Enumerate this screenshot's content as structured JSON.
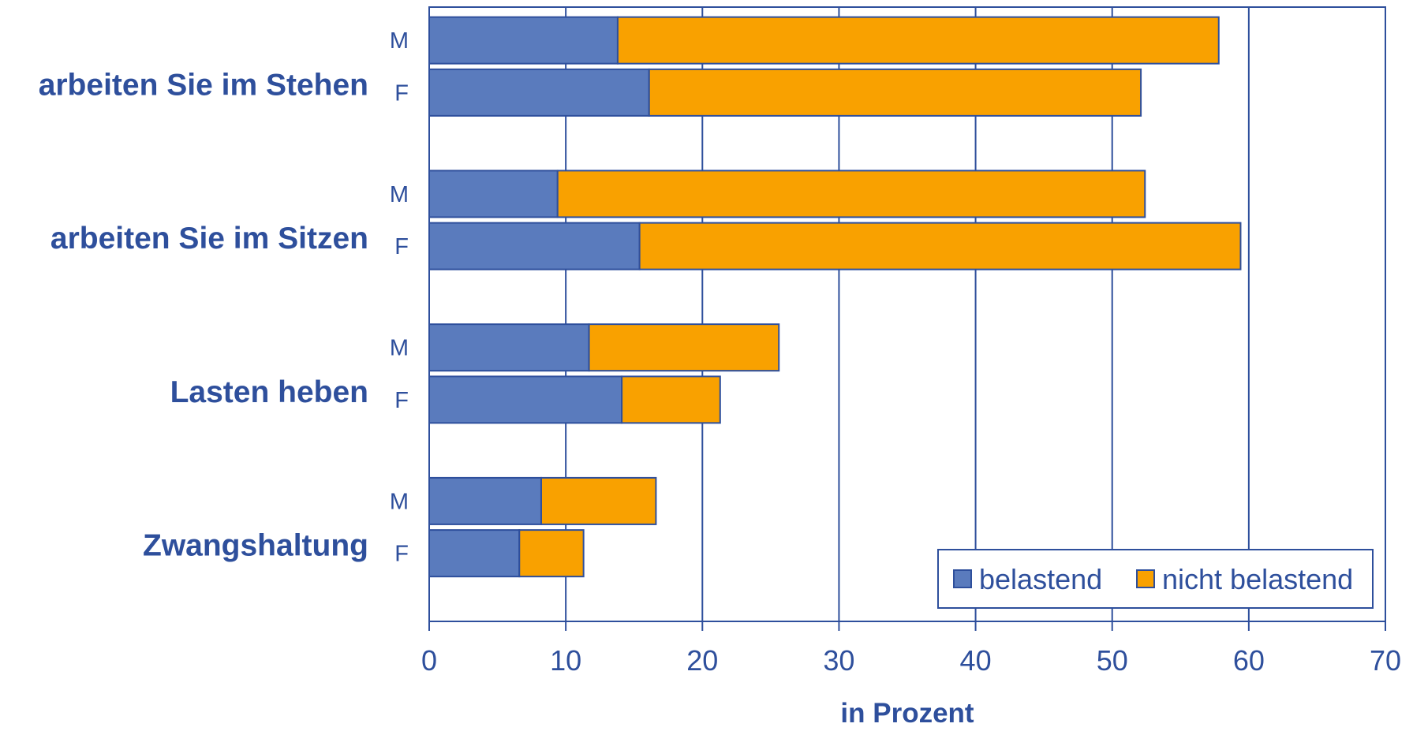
{
  "chart_data": {
    "type": "bar",
    "orientation": "horizontal",
    "stacked": true,
    "title": "",
    "xlabel": "in Prozent",
    "ylabel": "",
    "xlim": [
      0,
      70
    ],
    "x_ticks": [
      "0",
      "10",
      "20",
      "30",
      "40",
      "50",
      "60",
      "70"
    ],
    "grid": true,
    "legend_position": "bottom-right",
    "groups": [
      {
        "label": "arbeiten Sie im Stehen",
        "bars": [
          {
            "label": "M",
            "values": [
              13.8,
              44.0
            ]
          },
          {
            "label": "F",
            "values": [
              16.1,
              36.0
            ]
          }
        ]
      },
      {
        "label": "arbeiten Sie im Sitzen",
        "bars": [
          {
            "label": "M",
            "values": [
              9.4,
              43.0
            ]
          },
          {
            "label": "F",
            "values": [
              15.4,
              44.0
            ]
          }
        ]
      },
      {
        "label": "Lasten heben",
        "bars": [
          {
            "label": "M",
            "values": [
              11.7,
              13.9
            ]
          },
          {
            "label": "F",
            "values": [
              14.1,
              7.2
            ]
          }
        ]
      },
      {
        "label": "Zwangshaltung",
        "bars": [
          {
            "label": "M",
            "values": [
              8.2,
              8.4
            ]
          },
          {
            "label": "F",
            "values": [
              6.6,
              4.7
            ]
          }
        ]
      }
    ],
    "series": [
      {
        "name": "belastend",
        "color": "#5A7BBD"
      },
      {
        "name": "nicht belastend",
        "color": "#F9A100"
      }
    ]
  }
}
